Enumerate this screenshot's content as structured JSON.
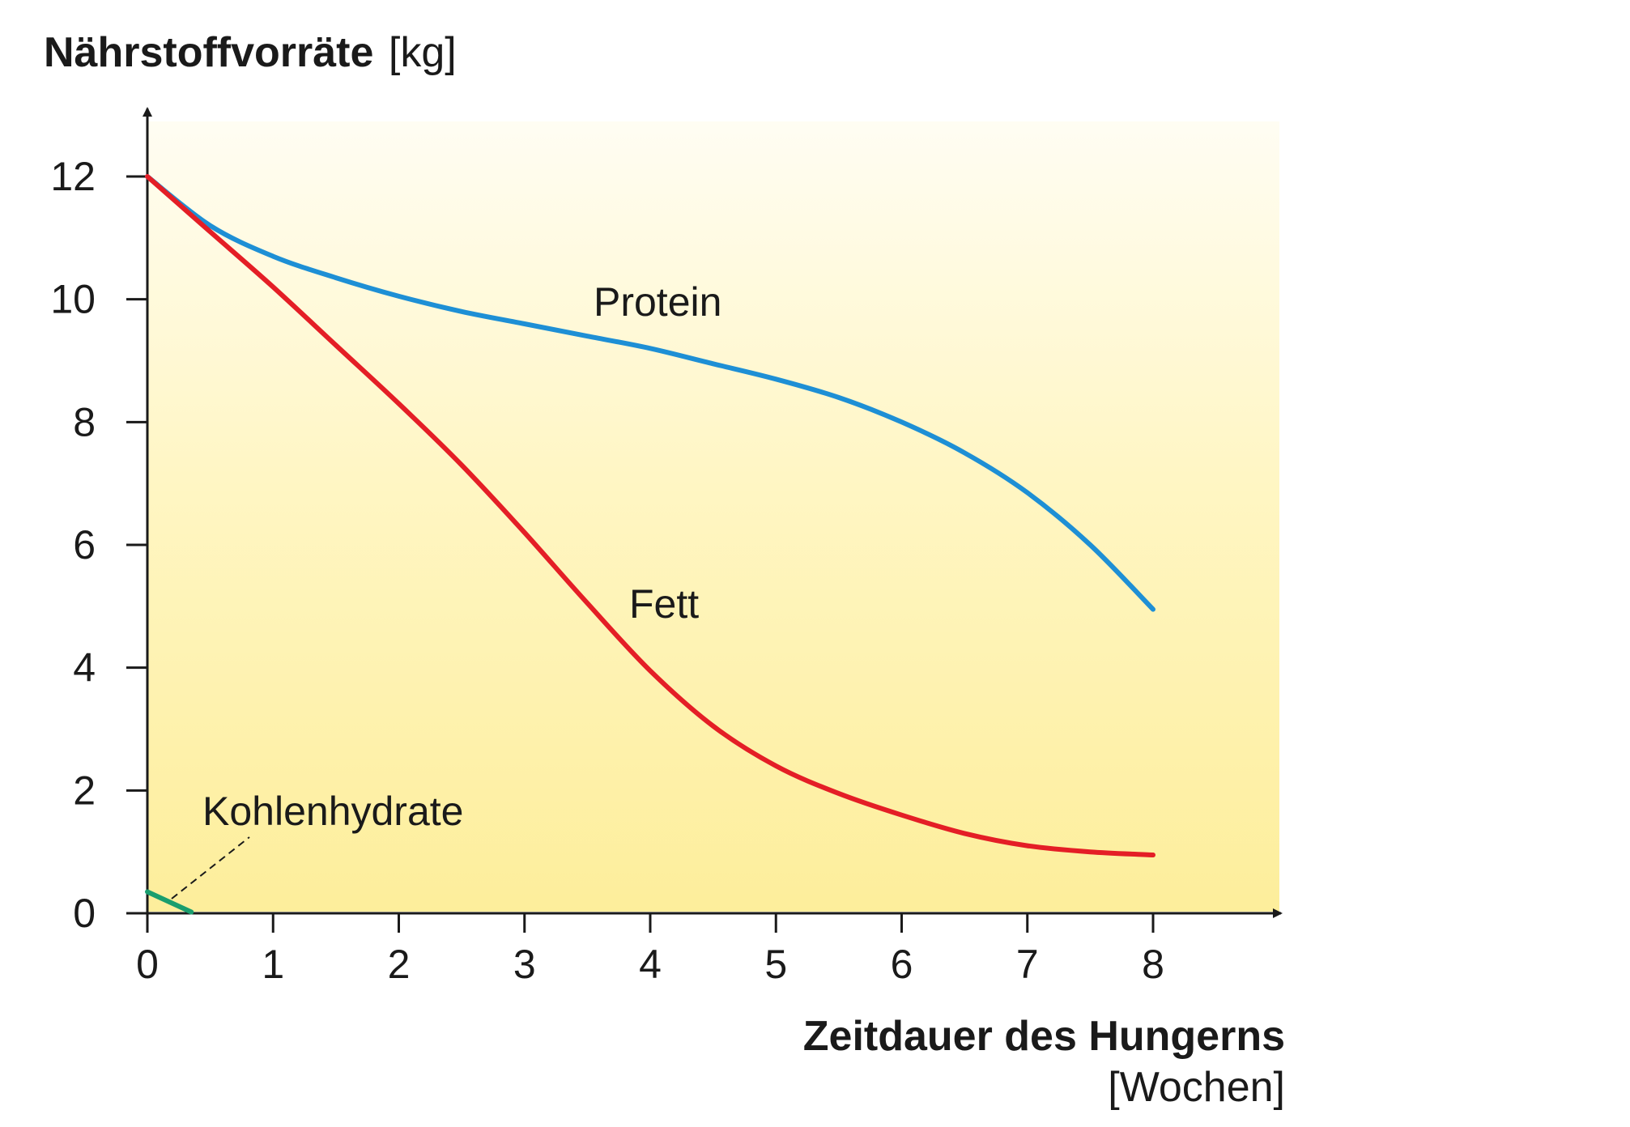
{
  "chart_data": {
    "type": "line",
    "title": "",
    "ylabel": {
      "bold": "Nährstoffvorräte",
      "unit": "[kg]"
    },
    "xlabel": {
      "bold": "Zeitdauer des Hungerns",
      "unit": "[Wochen]"
    },
    "xlim": [
      0,
      8
    ],
    "ylim": [
      0,
      12
    ],
    "x_ticks": [
      "0",
      "1",
      "2",
      "3",
      "4",
      "5",
      "6",
      "7",
      "8"
    ],
    "y_ticks": [
      "0",
      "2",
      "4",
      "6",
      "8",
      "10",
      "12"
    ],
    "grid": false,
    "background": "yellow-gradient",
    "series": [
      {
        "name": "Protein",
        "color": "#1e8fd5",
        "x": [
          0,
          0.5,
          1,
          1.5,
          2,
          2.5,
          3,
          3.5,
          4,
          4.5,
          5,
          5.5,
          6,
          6.5,
          7,
          7.5,
          8
        ],
        "y": [
          12,
          11.2,
          10.7,
          10.35,
          10.05,
          9.8,
          9.6,
          9.4,
          9.2,
          8.95,
          8.7,
          8.4,
          8.0,
          7.5,
          6.85,
          6.0,
          4.95
        ]
      },
      {
        "name": "Fett",
        "color": "#e41e26",
        "x": [
          0,
          0.5,
          1,
          1.5,
          2,
          2.5,
          3,
          3.5,
          4,
          4.5,
          5,
          5.5,
          6,
          6.5,
          7,
          7.5,
          8
        ],
        "y": [
          12,
          11.1,
          10.2,
          9.25,
          8.3,
          7.3,
          6.2,
          5.05,
          3.95,
          3.05,
          2.4,
          1.95,
          1.6,
          1.3,
          1.1,
          1.0,
          0.95
        ]
      },
      {
        "name": "Kohlenhydrate",
        "color": "#1a9e6e",
        "x": [
          0,
          0.35
        ],
        "y": [
          0.35,
          0.02
        ]
      }
    ]
  }
}
